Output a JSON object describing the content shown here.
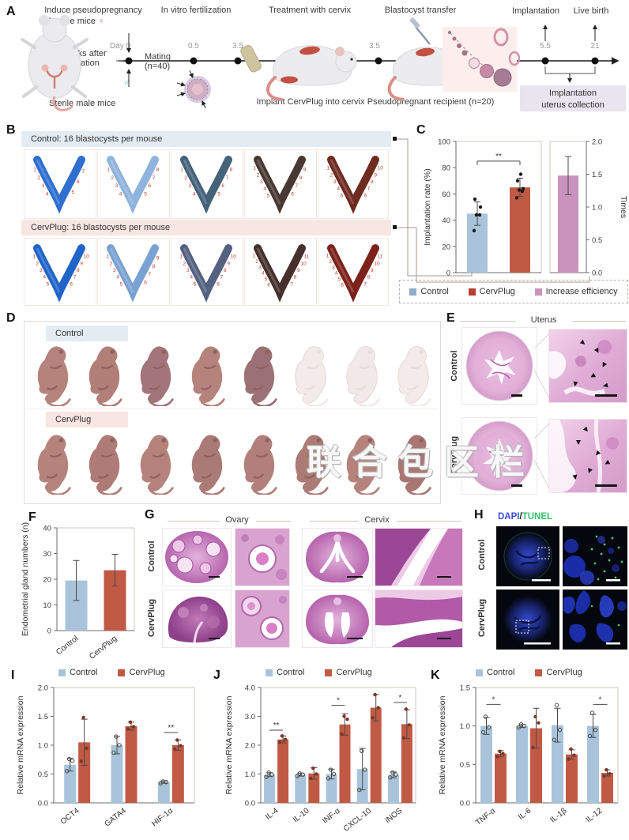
{
  "watermark": {
    "text": "联合包区栏"
  },
  "panel_a": {
    "label": "A",
    "step_titles": [
      "Induce pseudopregnancy",
      "In vitro fertilization",
      "Treatment with cervix",
      "Blastocyst transfer",
      "Implantation",
      "Live birth"
    ],
    "timeline_labels": [
      "Day 0",
      "0.5",
      "3.5",
      "3.5",
      "5.5",
      "21"
    ],
    "female_label": "Female mice",
    "female_symbol": "♀",
    "male_symbol": "♂",
    "castration_line1": "2 weeks after",
    "castration_line2": "castration",
    "sterile_label": "Sterile male mice",
    "mating_line1": "Mating",
    "mating_line2": "(n=40)",
    "implant_label": "Implant CervPlug into cervix",
    "recipient_label": "Pseudopregnant recipient (n=20)",
    "collection_line1": "Implantation",
    "collection_line2": "uterus collection"
  },
  "panel_b": {
    "label": "B",
    "control_header": "Control: 16 blastocysts per mouse",
    "cervplug_header": "CervPlug: 16 blastocysts per mouse",
    "control_tiles": [
      {
        "color": "#2e6fd0",
        "sites": 7
      },
      {
        "color": "#8fb3dc",
        "sites": 8
      },
      {
        "color": "#44627a",
        "sites": 8
      },
      {
        "color": "#473931",
        "sites": 9
      },
      {
        "color": "#6e2b20",
        "sites": 10
      }
    ],
    "cervplug_tiles": [
      {
        "color": "#2064c9",
        "sites": 10
      },
      {
        "color": "#79a2d2",
        "sites": 9
      },
      {
        "color": "#556180",
        "sites": 10
      },
      {
        "color": "#46302c",
        "sites": 11
      },
      {
        "color": "#7c221a",
        "sites": 11
      }
    ],
    "site_number_color": "#c0392b"
  },
  "panel_c": {
    "label": "C"
  },
  "panel_c_legend": {
    "items": [
      {
        "label": "Control",
        "color": "#8fadc8"
      },
      {
        "label": "CervPlug",
        "color": "#b5422f"
      },
      {
        "label": "Increase efficiency",
        "color": "#c993bd"
      }
    ]
  },
  "panel_d": {
    "label": "D",
    "row_labels": [
      "Control",
      "CervPlug"
    ],
    "control_pups": [
      "#b5837c",
      "#b27f78",
      "#a2757b",
      "#b5837c",
      "#9c7176",
      "#f2ebe9",
      "#f0e9e7",
      "#f2ebe9"
    ],
    "cervplug_pups": [
      "#b5837c",
      "#af7b76",
      "#b5837c",
      "#aa7a76",
      "#b1807a",
      "#ac7b74",
      "#b5837c",
      "#a87673"
    ]
  },
  "panel_e": {
    "label": "E",
    "title": "Uterus",
    "row_labels": [
      "Control",
      "CervPlug"
    ]
  },
  "panel_f": {
    "label": "F"
  },
  "panel_g": {
    "label": "G",
    "col_titles": [
      "Ovary",
      "Cervix"
    ],
    "row_labels": [
      "Control",
      "CervPlug"
    ]
  },
  "panel_h": {
    "label": "H",
    "stain_dapi": "DAPI",
    "stain_sep": "/",
    "stain_tunel": "TUNEL",
    "dapi_color": "#3b4fd8",
    "tunel_color": "#35c26a",
    "row_labels": [
      "Control",
      "CervPlug"
    ]
  },
  "panel_i": {
    "label": "I"
  },
  "panel_j": {
    "label": "J"
  },
  "panel_k": {
    "label": "K"
  },
  "chart_data": [
    {
      "id": "implantation_rate",
      "type": "bar",
      "panel": "C",
      "ylabel": "Implantation rate (%)",
      "ylim": [
        0,
        100
      ],
      "yticks": [
        "0",
        "20",
        "40",
        "60",
        "80",
        "100"
      ],
      "categories": [
        "Control",
        "CervPlug"
      ],
      "rotate_xticklabels": false,
      "series": [
        {
          "name": "Implantation rate",
          "colors": [
            "#a9c4da",
            "#c05a45"
          ],
          "values": [
            45,
            65
          ],
          "errors": [
            9,
            7
          ],
          "dots": [
            [
              32,
              44,
              44,
              50,
              56
            ],
            [
              57,
              62,
              63,
              64,
              70,
              75
            ]
          ],
          "dot_style": "filled-black"
        }
      ],
      "sig": [
        {
          "a": [
            0,
            0
          ],
          "b": [
            0,
            1
          ],
          "y": 85,
          "label": "**",
          "bracket": true
        }
      ]
    },
    {
      "id": "increase_efficiency",
      "type": "bar",
      "panel": "C",
      "ylabel": "Times",
      "axis_side": "right",
      "ylim": [
        0,
        2
      ],
      "yticks": [
        "0.0",
        "0.5",
        "1.0",
        "1.5",
        "2.0"
      ],
      "categories": [
        "Increase efficiency"
      ],
      "rotate_xticklabels": false,
      "series": [
        {
          "name": "Increase efficiency",
          "colors": [
            "#c993bd"
          ],
          "values": [
            1.48
          ],
          "errors": [
            0.29
          ]
        }
      ]
    },
    {
      "id": "endometrial_glands",
      "type": "bar",
      "panel": "F",
      "ylabel": "Endometrial gland numbers (n)",
      "ylim": [
        0,
        40
      ],
      "yticks": [
        "0",
        "10",
        "20",
        "30",
        "40"
      ],
      "categories": [
        "Control",
        "CervPlug"
      ],
      "rotate_xticklabels": true,
      "series": [
        {
          "name": "glands",
          "colors": [
            "#a9c4da",
            "#c05a45"
          ],
          "values": [
            19.5,
            23.5
          ],
          "errors": [
            7.8,
            6.2
          ]
        }
      ]
    },
    {
      "id": "mrna_embryo",
      "type": "bar",
      "panel": "I",
      "ylabel": "Relative mRNA expression",
      "ylim": [
        0,
        2
      ],
      "yticks": [
        "0.0",
        "0.5",
        "1.0",
        "1.5",
        "2.0"
      ],
      "categories": [
        "OCT4",
        "GATA4",
        "HIF-1α"
      ],
      "rotate_xticklabels": true,
      "legend": true,
      "series": [
        {
          "name": "Control",
          "color": "#a9c4da",
          "values": [
            0.66,
            1.0,
            0.36
          ],
          "errors": [
            0.11,
            0.15,
            0.02
          ],
          "dots": [
            [
              0.55,
              0.73,
              0.76
            ],
            [
              0.87,
              1.0,
              1.15
            ],
            [
              0.34,
              0.36,
              0.37
            ]
          ],
          "dot_style": "open"
        },
        {
          "name": "CervPlug",
          "color": "#c05a45",
          "values": [
            1.05,
            1.33,
            1.0
          ],
          "errors": [
            0.4,
            0.07,
            0.09
          ],
          "dots": [
            [
              0.72,
              0.95,
              1.48
            ],
            [
              1.28,
              1.32,
              1.4
            ],
            [
              0.93,
              0.99,
              1.09
            ]
          ],
          "dot_style": "filled-dark"
        }
      ],
      "sig": [
        {
          "a": [
            0,
            2
          ],
          "b": [
            1,
            2
          ],
          "y": 1.22,
          "label": "**"
        }
      ]
    },
    {
      "id": "mrna_m2",
      "type": "bar",
      "panel": "J",
      "ylabel": "Relative mRNA expression",
      "ylim": [
        0,
        4
      ],
      "yticks": [
        "0.0",
        "1.0",
        "2.0",
        "3.0",
        "4.0"
      ],
      "categories": [
        "IL-4",
        "IL-10",
        "INF-α",
        "CXCL-10",
        "iNOS"
      ],
      "rotate_xticklabels": true,
      "legend": true,
      "series": [
        {
          "name": "Control",
          "color": "#a9c4da",
          "values": [
            0.98,
            0.98,
            1.0,
            1.17,
            0.97
          ],
          "errors": [
            0.07,
            0.05,
            0.17,
            0.72,
            0.1
          ],
          "dots": [
            [
              0.9,
              0.98,
              1.05
            ],
            [
              0.93,
              0.98,
              1.02
            ],
            [
              0.85,
              1.0,
              1.15
            ],
            [
              0.45,
              1.15,
              1.8
            ],
            [
              0.88,
              0.98,
              1.05
            ]
          ],
          "dot_style": "open"
        },
        {
          "name": "CervPlug",
          "color": "#c05a45",
          "values": [
            2.2,
            1.02,
            2.72,
            3.3,
            2.73
          ],
          "errors": [
            0.12,
            0.2,
            0.37,
            0.46,
            0.5
          ],
          "dots": [
            [
              2.1,
              2.2,
              2.32
            ],
            [
              0.85,
              1.0,
              1.2
            ],
            [
              2.38,
              2.9,
              3.0
            ],
            [
              2.95,
              3.3,
              3.75
            ],
            [
              2.25,
              2.7,
              3.25
            ]
          ],
          "dot_style": "filled-dark"
        }
      ],
      "sig": [
        {
          "a": [
            0,
            0
          ],
          "b": [
            1,
            0
          ],
          "y": 2.52,
          "label": "**"
        },
        {
          "a": [
            0,
            2
          ],
          "b": [
            1,
            2
          ],
          "y": 3.38,
          "label": "*"
        },
        {
          "a": [
            0,
            4
          ],
          "b": [
            1,
            4
          ],
          "y": 3.48,
          "label": "*"
        }
      ]
    },
    {
      "id": "mrna_m1",
      "type": "bar",
      "panel": "K",
      "ylabel": "Relative mRNA expression",
      "ylim": [
        0,
        1.5
      ],
      "yticks": [
        "0.0",
        "0.5",
        "1.0",
        "1.5"
      ],
      "categories": [
        "TNF-α",
        "IL-6",
        "IL-1β",
        "IL-12"
      ],
      "rotate_xticklabels": true,
      "legend": true,
      "series": [
        {
          "name": "Control",
          "color": "#a9c4da",
          "values": [
            1.0,
            1.0,
            1.01,
            1.0
          ],
          "errors": [
            0.11,
            0.02,
            0.22,
            0.15
          ],
          "dots": [
            [
              0.92,
              0.98,
              1.12
            ],
            [
              0.98,
              1.0,
              1.02
            ],
            [
              0.82,
              0.95,
              1.27
            ],
            [
              0.87,
              0.95,
              1.17
            ]
          ],
          "dot_style": "open"
        },
        {
          "name": "CervPlug",
          "color": "#c05a45",
          "values": [
            0.64,
            0.97,
            0.63,
            0.39
          ],
          "errors": [
            0.04,
            0.26,
            0.06,
            0.04
          ],
          "dots": [
            [
              0.6,
              0.64,
              0.67
            ],
            [
              0.72,
              1.04,
              1.12
            ],
            [
              0.57,
              0.62,
              0.7
            ],
            [
              0.35,
              0.38,
              0.43
            ]
          ],
          "dot_style": "filled-dark"
        }
      ],
      "sig": [
        {
          "a": [
            0,
            0
          ],
          "b": [
            1,
            0
          ],
          "y": 1.28,
          "label": "*"
        },
        {
          "a": [
            0,
            3
          ],
          "b": [
            1,
            3
          ],
          "y": 1.28,
          "label": "*"
        }
      ]
    }
  ]
}
